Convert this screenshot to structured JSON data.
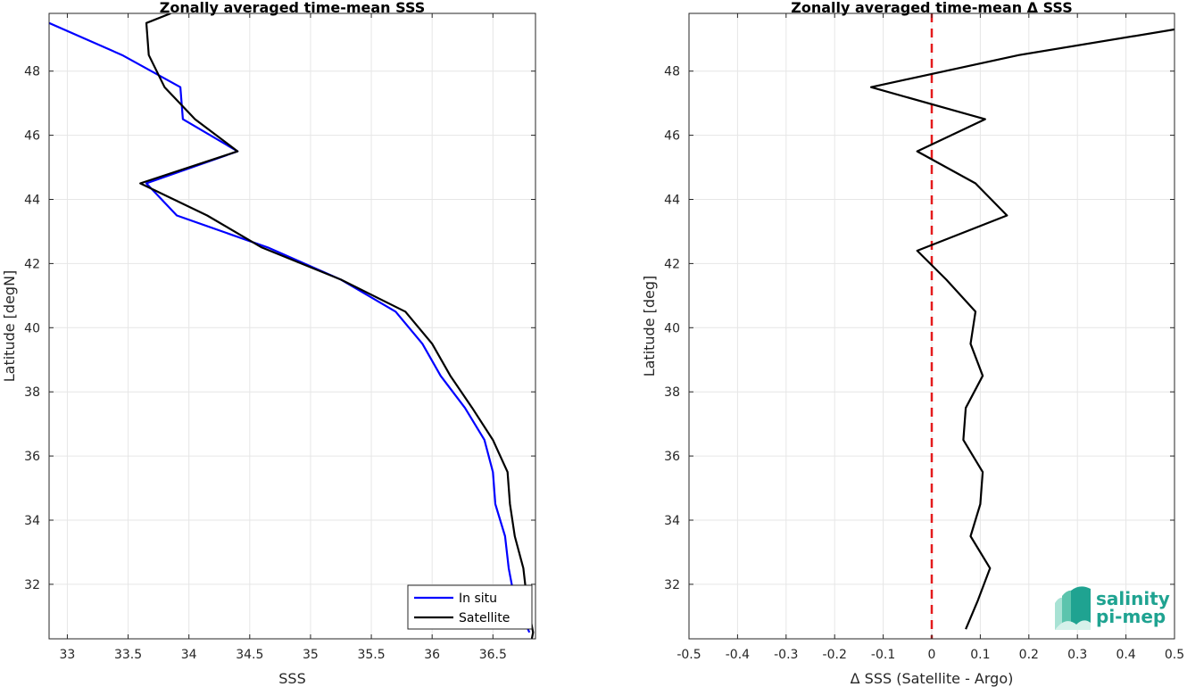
{
  "chart_data": [
    {
      "type": "line",
      "title": "Zonally averaged time-mean SSS",
      "xlabel": "SSS",
      "ylabel": "Latitude [degN]",
      "xlim": [
        32.85,
        36.85
      ],
      "ylim": [
        30.3,
        49.8
      ],
      "xticks": [
        33,
        33.5,
        34,
        34.5,
        35,
        35.5,
        36,
        36.5
      ],
      "yticks": [
        32,
        34,
        36,
        38,
        40,
        42,
        44,
        46,
        48
      ],
      "grid": true,
      "legend_position": "bottom-right",
      "series": [
        {
          "name": "In situ",
          "color": "#0000ff",
          "points": [
            [
              32.85,
              49.5
            ],
            [
              33.45,
              48.5
            ],
            [
              33.93,
              47.5
            ],
            [
              33.95,
              46.5
            ],
            [
              34.4,
              45.5
            ],
            [
              33.65,
              44.5
            ],
            [
              33.9,
              43.5
            ],
            [
              34.65,
              42.5
            ],
            [
              35.25,
              41.5
            ],
            [
              35.7,
              40.5
            ],
            [
              35.92,
              39.5
            ],
            [
              36.07,
              38.5
            ],
            [
              36.27,
              37.5
            ],
            [
              36.43,
              36.5
            ],
            [
              36.5,
              35.5
            ],
            [
              36.52,
              34.5
            ],
            [
              36.6,
              33.5
            ],
            [
              36.63,
              32.5
            ],
            [
              36.68,
              31.5
            ],
            [
              36.8,
              30.5
            ]
          ]
        },
        {
          "name": "Satellite",
          "color": "#000000",
          "points": [
            [
              33.85,
              49.8
            ],
            [
              33.65,
              49.5
            ],
            [
              33.67,
              48.5
            ],
            [
              33.8,
              47.5
            ],
            [
              34.05,
              46.5
            ],
            [
              34.4,
              45.5
            ],
            [
              33.6,
              44.5
            ],
            [
              34.15,
              43.5
            ],
            [
              34.6,
              42.5
            ],
            [
              35.25,
              41.5
            ],
            [
              35.78,
              40.5
            ],
            [
              36.0,
              39.5
            ],
            [
              36.15,
              38.5
            ],
            [
              36.33,
              37.5
            ],
            [
              36.5,
              36.5
            ],
            [
              36.62,
              35.5
            ],
            [
              36.64,
              34.5
            ],
            [
              36.68,
              33.5
            ],
            [
              36.75,
              32.5
            ],
            [
              36.78,
              31.5
            ],
            [
              36.83,
              30.5
            ],
            [
              36.82,
              30.3
            ]
          ]
        }
      ]
    },
    {
      "type": "line",
      "title": "Zonally averaged time-mean Δ SSS",
      "xlabel": "Δ SSS (Satellite - Argo)",
      "ylabel": "Latitude [deg]",
      "xlim": [
        -0.5,
        0.5
      ],
      "ylim": [
        30.3,
        49.8
      ],
      "xticks": [
        -0.5,
        -0.4,
        -0.3,
        -0.2,
        -0.1,
        0,
        0.1,
        0.2,
        0.3,
        0.4,
        0.5
      ],
      "yticks": [
        32,
        34,
        36,
        38,
        40,
        42,
        44,
        46,
        48
      ],
      "grid": true,
      "reference_line": {
        "x": 0,
        "color": "#e41a1c",
        "style": "dashed"
      },
      "series": [
        {
          "color": "#000000",
          "points": [
            [
              0.5,
              49.3
            ],
            [
              0.18,
              48.5
            ],
            [
              -0.125,
              47.5
            ],
            [
              0.11,
              46.5
            ],
            [
              -0.03,
              45.5
            ],
            [
              0.09,
              44.5
            ],
            [
              0.155,
              43.5
            ],
            [
              -0.03,
              42.4
            ],
            [
              0.03,
              41.5
            ],
            [
              0.09,
              40.5
            ],
            [
              0.08,
              39.5
            ],
            [
              0.105,
              38.5
            ],
            [
              0.07,
              37.5
            ],
            [
              0.065,
              36.5
            ],
            [
              0.105,
              35.5
            ],
            [
              0.1,
              34.5
            ],
            [
              0.08,
              33.5
            ],
            [
              0.12,
              32.5
            ],
            [
              0.095,
              31.5
            ],
            [
              0.07,
              30.6
            ]
          ]
        }
      ]
    }
  ],
  "logo": {
    "line1": "salinity",
    "line2": "pi-mep"
  }
}
